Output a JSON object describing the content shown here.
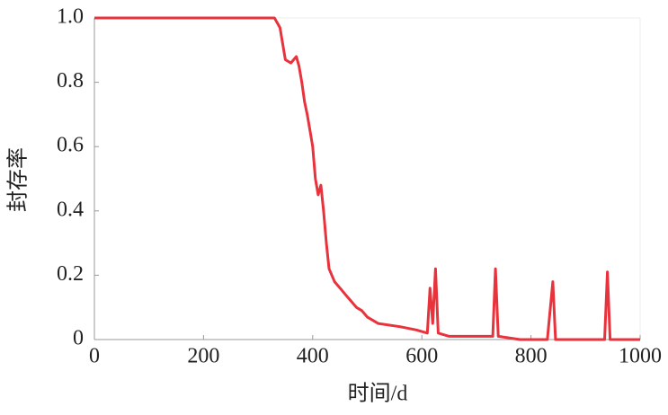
{
  "chart_data": {
    "type": "line",
    "x_label": "时间/d",
    "y_label": "封存率",
    "x": [
      0,
      330,
      340,
      345,
      350,
      360,
      365,
      370,
      375,
      380,
      385,
      390,
      395,
      400,
      405,
      410,
      415,
      420,
      425,
      430,
      440,
      450,
      460,
      470,
      480,
      490,
      500,
      520,
      560,
      590,
      610,
      615,
      620,
      625,
      630,
      650,
      700,
      730,
      735,
      740,
      780,
      830,
      840,
      845,
      900,
      935,
      940,
      945,
      1000
    ],
    "values": [
      1.0,
      1.0,
      0.97,
      0.92,
      0.87,
      0.86,
      0.87,
      0.88,
      0.85,
      0.8,
      0.74,
      0.7,
      0.65,
      0.6,
      0.5,
      0.45,
      0.48,
      0.4,
      0.3,
      0.22,
      0.18,
      0.16,
      0.14,
      0.12,
      0.1,
      0.09,
      0.07,
      0.05,
      0.04,
      0.03,
      0.02,
      0.16,
      0.05,
      0.22,
      0.02,
      0.01,
      0.01,
      0.01,
      0.22,
      0.01,
      0,
      0,
      0.18,
      0,
      0,
      0,
      0.21,
      0,
      0
    ],
    "color": "#e8323c",
    "xlim": [
      0,
      1000
    ],
    "xticks": [
      0,
      200,
      400,
      600,
      800,
      1000
    ],
    "ylim": [
      0,
      1
    ],
    "yticks": [
      0,
      0.2,
      0.4,
      0.6,
      0.8,
      {
        "value": 1,
        "label": "1.0"
      }
    ]
  }
}
